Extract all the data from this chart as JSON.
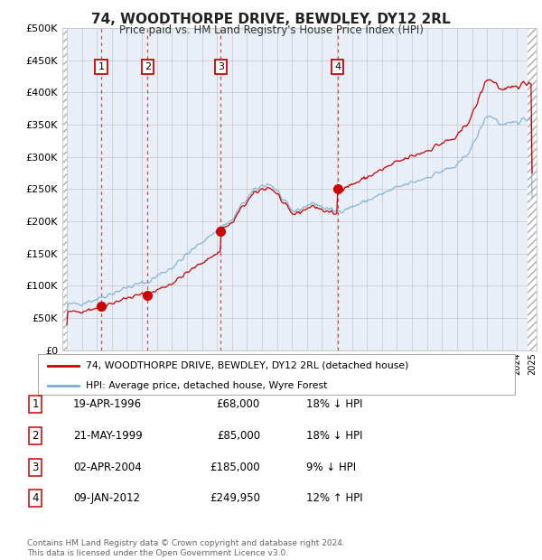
{
  "title": "74, WOODTHORPE DRIVE, BEWDLEY, DY12 2RL",
  "subtitle": "Price paid vs. HM Land Registry's House Price Index (HPI)",
  "ylim": [
    0,
    500000
  ],
  "yticks": [
    0,
    50000,
    100000,
    150000,
    200000,
    250000,
    300000,
    350000,
    400000,
    450000,
    500000
  ],
  "xlim_start": 1993.7,
  "xlim_end": 2025.3,
  "sale_dates": [
    1996.29,
    1999.38,
    2004.25,
    2012.03
  ],
  "sale_prices": [
    68000,
    85000,
    185000,
    249950
  ],
  "sale_labels": [
    "1",
    "2",
    "3",
    "4"
  ],
  "legend_property": "74, WOODTHORPE DRIVE, BEWDLEY, DY12 2RL (detached house)",
  "legend_hpi": "HPI: Average price, detached house, Wyre Forest",
  "table_entries": [
    {
      "num": "1",
      "date": "19-APR-1996",
      "price": "£68,000",
      "pct": "18%",
      "dir": "↓",
      "ref": "HPI"
    },
    {
      "num": "2",
      "date": "21-MAY-1999",
      "price": "£85,000",
      "pct": "18%",
      "dir": "↓",
      "ref": "HPI"
    },
    {
      "num": "3",
      "date": "02-APR-2004",
      "price": "£185,000",
      "pct": "9%",
      "dir": "↓",
      "ref": "HPI"
    },
    {
      "num": "4",
      "date": "09-JAN-2012",
      "price": "£249,950",
      "pct": "12%",
      "dir": "↑",
      "ref": "HPI"
    }
  ],
  "footer": "Contains HM Land Registry data © Crown copyright and database right 2024.\nThis data is licensed under the Open Government Licence v3.0.",
  "property_color": "#cc0000",
  "hpi_color": "#7ab0d4",
  "sale_marker_color": "#cc0000",
  "dashed_line_color": "#cc0000",
  "hatch_color": "#bbbbbb",
  "grid_color": "#cccccc",
  "bg_plot_color": "#e8eff8"
}
